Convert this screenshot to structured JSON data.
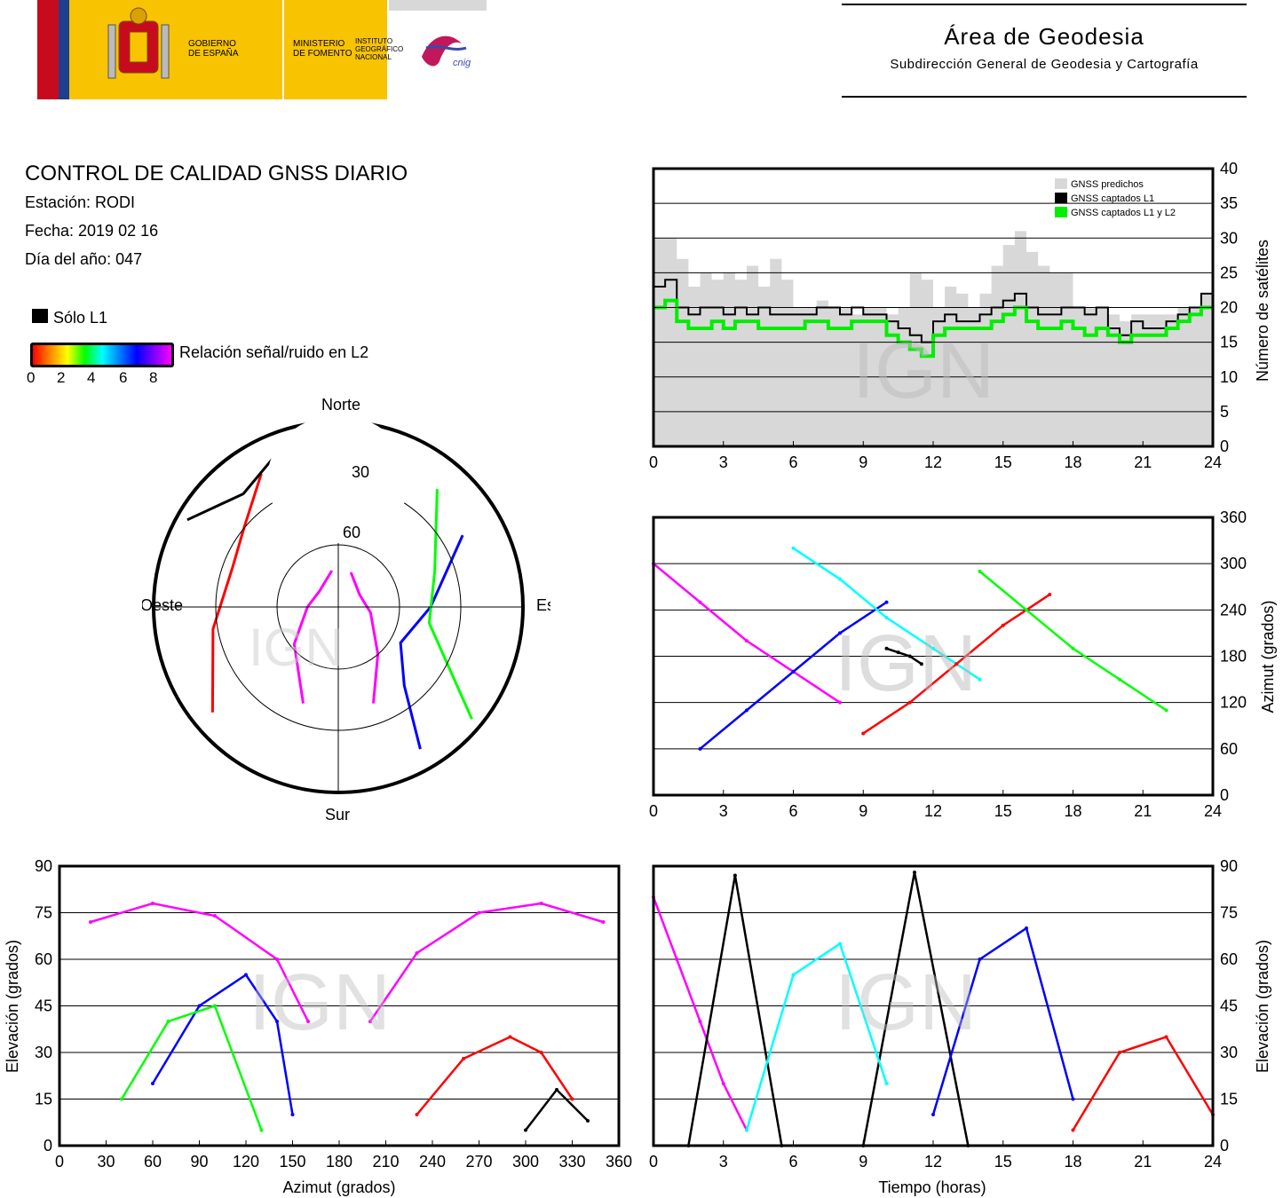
{
  "header": {
    "gov_line1": "GOBIERNO",
    "gov_line2": "DE ESPAÑA",
    "min_line1": "MINISTERIO",
    "min_line2": "DE FOMENTO",
    "ign_line1": "INSTITUTO",
    "ign_line2": "GEOGRÁFICO",
    "ign_line3": "NACIONAL",
    "cnig": "cnig",
    "area_title": "Área de Geodesia",
    "area_subtitle": "Subdirección General de Geodesia y Cartografía"
  },
  "info": {
    "title": "CONTROL DE CALIDAD GNSS DIARIO",
    "station": "Estación: RODI",
    "date": "Fecha: 2019 02 16",
    "doy": "Día del año: 047"
  },
  "legend": {
    "only_l1": "Sólo L1",
    "snr_label": "Relación señal/ruido en L2",
    "snr_ticks": [
      "0",
      "2",
      "4",
      "6",
      "8"
    ],
    "snr_colors": [
      "#ff0000",
      "#ff8800",
      "#ffff00",
      "#00ff00",
      "#00ffff",
      "#0080ff",
      "#0000ff",
      "#8000ff",
      "#ff00ff"
    ]
  },
  "watermark": "IGN",
  "skyplot": {
    "north": "Norte",
    "south": "Sur",
    "east": "Este",
    "west": "Oeste",
    "ring_labels": [
      "30",
      "60"
    ]
  },
  "chart_data": [
    {
      "type": "area",
      "id": "satellite-count",
      "ylabel": "Número de satélites",
      "xlim": [
        0,
        24
      ],
      "ylim": [
        0,
        40
      ],
      "xticks": [
        "0",
        "3",
        "6",
        "9",
        "12",
        "15",
        "18",
        "21",
        "24"
      ],
      "yticks": [
        "0",
        "5",
        "10",
        "15",
        "20",
        "25",
        "30",
        "35",
        "40"
      ],
      "legend_position": "top-right",
      "legend": [
        "GNSS predichos",
        "GNSS captados L1",
        "GNSS captados L1 y L2"
      ],
      "series_colors": [
        "#d8d8d8",
        "#000000",
        "#00ee00"
      ],
      "x": [
        0,
        0.5,
        1,
        1.5,
        2,
        2.5,
        3,
        3.5,
        4,
        4.5,
        5,
        5.5,
        6,
        6.5,
        7,
        7.5,
        8,
        8.5,
        9,
        9.5,
        10,
        10.5,
        11,
        11.5,
        12,
        12.5,
        13,
        13.5,
        14,
        14.5,
        15,
        15.5,
        16,
        16.5,
        17,
        17.5,
        18,
        18.5,
        19,
        19.5,
        20,
        20.5,
        21,
        21.5,
        22,
        22.5,
        23,
        23.5,
        24
      ],
      "series": [
        {
          "values": [
            30,
            30,
            27,
            23,
            25,
            24,
            25,
            24,
            26,
            23,
            27,
            24,
            20,
            20,
            21,
            20,
            20,
            19,
            20,
            20,
            19,
            20,
            25,
            24,
            20,
            23,
            22,
            20,
            22,
            26,
            29,
            31,
            28,
            26,
            25,
            25,
            20,
            20,
            20,
            19,
            18,
            19,
            19,
            19,
            19,
            20,
            20,
            22,
            22
          ]
        },
        {
          "values": [
            23,
            24,
            20,
            19,
            20,
            20,
            19,
            20,
            19,
            20,
            19,
            19,
            19,
            19,
            20,
            20,
            19,
            20,
            19,
            19,
            18,
            17,
            16,
            15,
            18,
            19,
            18,
            18,
            19,
            20,
            21,
            22,
            20,
            19,
            19,
            20,
            20,
            19,
            20,
            17,
            16,
            18,
            17,
            17,
            18,
            19,
            20,
            22,
            22
          ]
        },
        {
          "values": [
            20,
            21,
            18,
            17,
            17,
            18,
            17,
            18,
            18,
            17,
            17,
            17,
            17,
            18,
            18,
            17,
            17,
            18,
            18,
            18,
            16,
            15,
            14,
            13,
            16,
            17,
            17,
            17,
            17,
            18,
            19,
            20,
            18,
            17,
            17,
            18,
            17,
            16,
            17,
            16,
            15,
            16,
            16,
            16,
            17,
            18,
            19,
            20,
            20
          ]
        }
      ]
    },
    {
      "type": "scatter",
      "id": "azimuth-vs-time",
      "ylabel": "Azimut (grados)",
      "xlim": [
        0,
        24
      ],
      "ylim": [
        0,
        360
      ],
      "xticks": [
        "0",
        "3",
        "6",
        "9",
        "12",
        "15",
        "18",
        "21",
        "24"
      ],
      "yticks": [
        "0",
        "60",
        "120",
        "180",
        "240",
        "300",
        "360"
      ],
      "series": [
        {
          "color": "#ff00ff",
          "x": [
            0,
            2,
            4,
            6,
            8
          ],
          "y": [
            300,
            250,
            200,
            160,
            120
          ]
        },
        {
          "color": "#0000ff",
          "x": [
            2,
            4,
            6,
            8,
            10
          ],
          "y": [
            60,
            110,
            160,
            210,
            250
          ]
        },
        {
          "color": "#00ffff",
          "x": [
            6,
            8,
            10,
            12,
            14
          ],
          "y": [
            320,
            280,
            230,
            190,
            150
          ]
        },
        {
          "color": "#ff0000",
          "x": [
            9,
            11,
            13,
            15,
            17
          ],
          "y": [
            80,
            120,
            170,
            220,
            260
          ]
        },
        {
          "color": "#00ff00",
          "x": [
            14,
            16,
            18,
            20,
            22
          ],
          "y": [
            290,
            240,
            190,
            150,
            110
          ]
        },
        {
          "color": "#000000",
          "x": [
            10,
            10.5,
            11,
            11.5
          ],
          "y": [
            190,
            185,
            180,
            170
          ]
        }
      ]
    },
    {
      "type": "scatter",
      "id": "elevation-vs-azimuth",
      "xlabel": "Azimut (grados)",
      "ylabel": "Elevación (grados)",
      "xlim": [
        0,
        360
      ],
      "ylim": [
        0,
        90
      ],
      "xticks": [
        "0",
        "30",
        "60",
        "90",
        "120",
        "150",
        "180",
        "210",
        "240",
        "270",
        "300",
        "330",
        "360"
      ],
      "yticks": [
        "0",
        "15",
        "30",
        "45",
        "60",
        "75",
        "90"
      ],
      "series": [
        {
          "color": "#ff00ff",
          "x": [
            20,
            60,
            100,
            140,
            160
          ],
          "y": [
            72,
            78,
            74,
            60,
            40
          ]
        },
        {
          "color": "#ff00ff",
          "x": [
            200,
            230,
            270,
            310,
            350
          ],
          "y": [
            40,
            62,
            75,
            78,
            72
          ]
        },
        {
          "color": "#0000ff",
          "x": [
            60,
            90,
            120,
            140,
            150
          ],
          "y": [
            20,
            45,
            55,
            40,
            10
          ]
        },
        {
          "color": "#00ff00",
          "x": [
            40,
            70,
            100,
            130
          ],
          "y": [
            15,
            40,
            45,
            5
          ]
        },
        {
          "color": "#ff0000",
          "x": [
            230,
            260,
            290,
            310,
            330
          ],
          "y": [
            10,
            28,
            35,
            30,
            15
          ]
        },
        {
          "color": "#000000",
          "x": [
            300,
            320,
            340
          ],
          "y": [
            5,
            18,
            8
          ]
        }
      ]
    },
    {
      "type": "scatter",
      "id": "elevation-vs-time",
      "xlabel": "Tiempo (horas)",
      "ylabel": "Elevación (grados)",
      "xlim": [
        0,
        24
      ],
      "ylim": [
        0,
        90
      ],
      "xticks": [
        "0",
        "3",
        "6",
        "9",
        "12",
        "15",
        "18",
        "21",
        "24"
      ],
      "yticks": [
        "0",
        "15",
        "30",
        "45",
        "60",
        "75",
        "90"
      ],
      "series": [
        {
          "color": "#ff00ff",
          "x": [
            0,
            1,
            2,
            3,
            4
          ],
          "y": [
            80,
            60,
            40,
            20,
            5
          ]
        },
        {
          "color": "#000000",
          "x": [
            1.5,
            3.5,
            5.5
          ],
          "y": [
            0,
            87,
            0
          ]
        },
        {
          "color": "#000000",
          "x": [
            9,
            11.2,
            13.5
          ],
          "y": [
            0,
            88,
            0
          ]
        },
        {
          "color": "#00ffff",
          "x": [
            4,
            6,
            8,
            10
          ],
          "y": [
            5,
            55,
            65,
            20
          ]
        },
        {
          "color": "#0000ff",
          "x": [
            12,
            14,
            16,
            18
          ],
          "y": [
            10,
            60,
            70,
            15
          ]
        },
        {
          "color": "#ff0000",
          "x": [
            18,
            20,
            22,
            24
          ],
          "y": [
            5,
            30,
            35,
            10
          ]
        }
      ]
    }
  ]
}
